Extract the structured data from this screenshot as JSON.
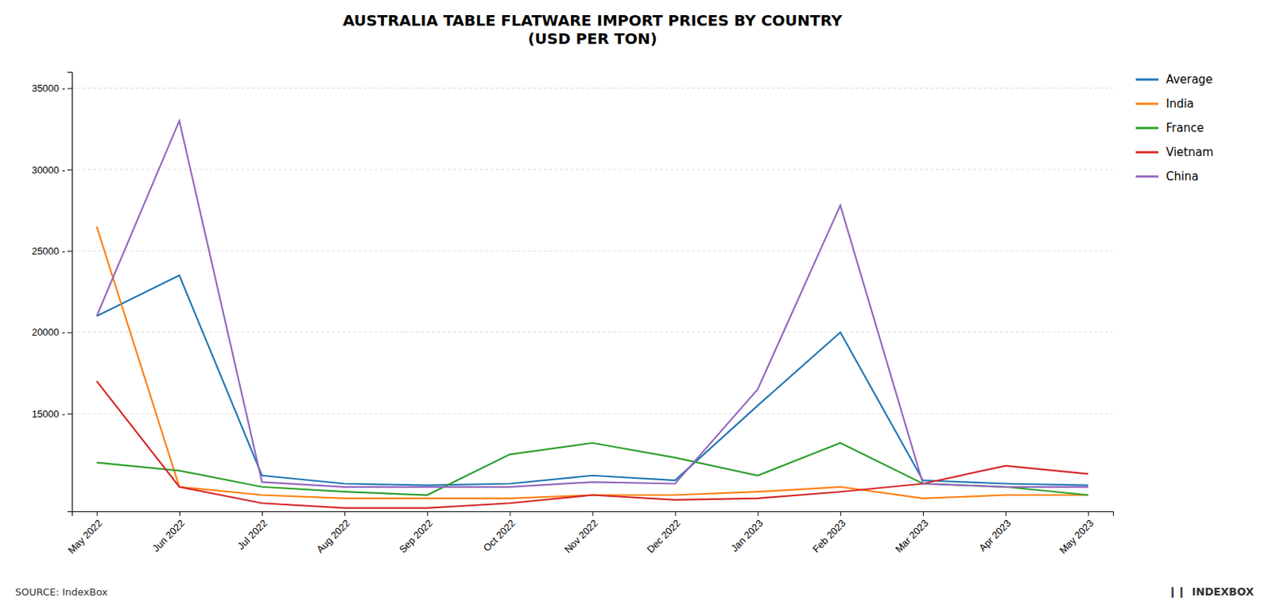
{
  "chart_data": {
    "type": "line",
    "title": "AUSTRALIA TABLE FLATWARE IMPORT PRICES BY COUNTRY\n(USD PER TON)",
    "categories": [
      "May 2022",
      "Jun 2022",
      "Jul 2022",
      "Aug 2022",
      "Sep 2022",
      "Oct 2022",
      "Nov 2022",
      "Dec 2022",
      "Jan 2023",
      "Feb 2023",
      "Mar 2023",
      "Apr 2023",
      "May 2023"
    ],
    "series": [
      {
        "name": "Average",
        "values": [
          21000,
          23500,
          11200,
          10700,
          10600,
          10700,
          11200,
          10900,
          15500,
          20000,
          10900,
          10700,
          10600
        ]
      },
      {
        "name": "India",
        "values": [
          26500,
          10500,
          10000,
          9800,
          9800,
          9800,
          10000,
          10000,
          10200,
          10500,
          9800,
          10000,
          10000
        ]
      },
      {
        "name": "France",
        "values": [
          12000,
          11500,
          10500,
          10200,
          10000,
          12500,
          13200,
          12300,
          11200,
          13200,
          10700,
          10500,
          10000
        ]
      },
      {
        "name": "Vietnam",
        "values": [
          17000,
          10500,
          9500,
          9200,
          9200,
          9500,
          10000,
          9700,
          9800,
          10200,
          10700,
          11800,
          11300
        ]
      },
      {
        "name": "China",
        "values": [
          21000,
          33000,
          10800,
          10500,
          10500,
          10500,
          10800,
          10700,
          16500,
          27800,
          10700,
          10500,
          10500
        ]
      }
    ],
    "ylim": [
      9000,
      36000
    ],
    "yticks": [
      {
        "value": 15000,
        "label": "15000 -"
      },
      {
        "value": 20000,
        "label": "20000 -"
      },
      {
        "value": 25000,
        "label": "25000 -"
      },
      {
        "value": 30000,
        "label": "30000 -"
      },
      {
        "value": 35000,
        "label": "35000 -"
      }
    ],
    "grid": true,
    "legend": "right",
    "annotations": [
      "SOURCE: IndexBox",
      "❙❙",
      "INDEXBOX"
    ]
  }
}
